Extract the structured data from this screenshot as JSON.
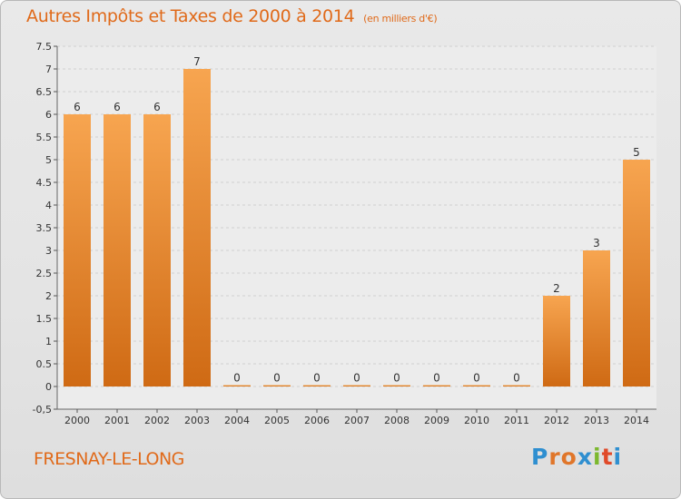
{
  "chart_data": {
    "type": "bar",
    "title": "Autres Impôts et Taxes de 2000 à 2014",
    "subtitle": "(en milliers d'€)",
    "categories": [
      "2000",
      "2001",
      "2002",
      "2003",
      "2004",
      "2005",
      "2006",
      "2007",
      "2008",
      "2009",
      "2010",
      "2011",
      "2012",
      "2013",
      "2014"
    ],
    "values": [
      6,
      6,
      6,
      7,
      0,
      0,
      0,
      0,
      0,
      0,
      0,
      0,
      2,
      3,
      5
    ],
    "ylim": [
      -0.5,
      7.5
    ],
    "yticks": [
      "-0,5",
      "0",
      "0.5",
      "1",
      "1.5",
      "2",
      "2.5",
      "3",
      "3.5",
      "4",
      "4.5",
      "5",
      "5.5",
      "6",
      "6.5",
      "7",
      "7.5"
    ],
    "ytick_values": [
      -0.5,
      0,
      0.5,
      1,
      1.5,
      2,
      2.5,
      3,
      3.5,
      4,
      4.5,
      5,
      5.5,
      6,
      6.5,
      7,
      7.5
    ],
    "grid": true,
    "bar_color": "#f0902a"
  },
  "location": "FRESNAY-LE-LONG",
  "logo": [
    "P",
    "r",
    "o",
    "x",
    "i",
    "t",
    "i"
  ]
}
